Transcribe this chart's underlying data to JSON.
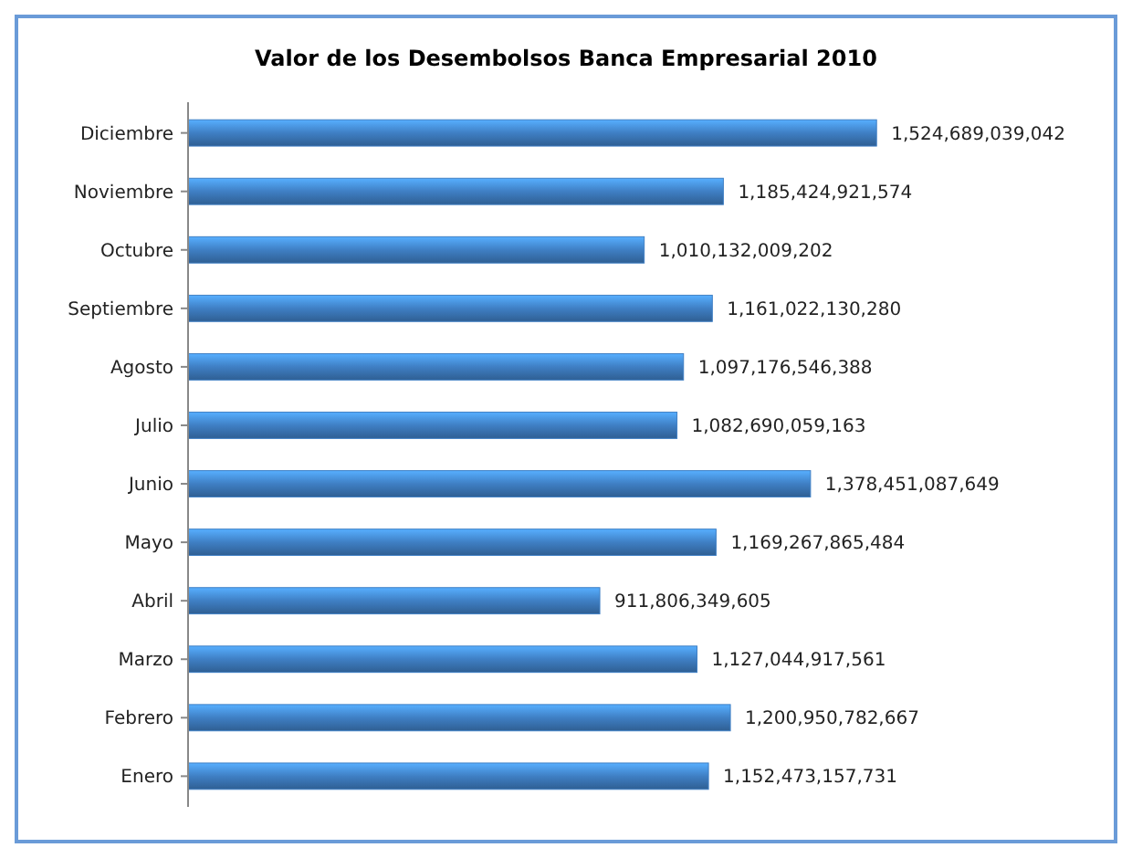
{
  "chart_data": {
    "type": "bar",
    "orientation": "horizontal",
    "title": "Valor de los Desembolsos Banca Empresarial 2010",
    "categories": [
      "Diciembre",
      "Noviembre",
      "Octubre",
      "Septiembre",
      "Agosto",
      "Julio",
      "Junio",
      "Mayo",
      "Abril",
      "Marzo",
      "Febrero",
      "Enero"
    ],
    "values": [
      1524689039042,
      1185424921574,
      1010132009202,
      1161022130280,
      1097176546388,
      1082690059163,
      1378451087649,
      1169267865484,
      911806349605,
      1127044917561,
      1200950782667,
      1152473157731
    ],
    "value_labels": [
      "1,524,689,039,042",
      "1,185,424,921,574",
      "1,010,132,009,202",
      "1,161,022,130,280",
      "1,097,176,546,388",
      "1,082,690,059,163",
      "1,378,451,087,649",
      "1,169,267,865,484",
      "911,806,349,605",
      "1,127,044,917,561",
      "1,200,950,782,667",
      "1,152,473,157,731"
    ],
    "color": "#3f7fc4",
    "tick_labels": "y"
  }
}
